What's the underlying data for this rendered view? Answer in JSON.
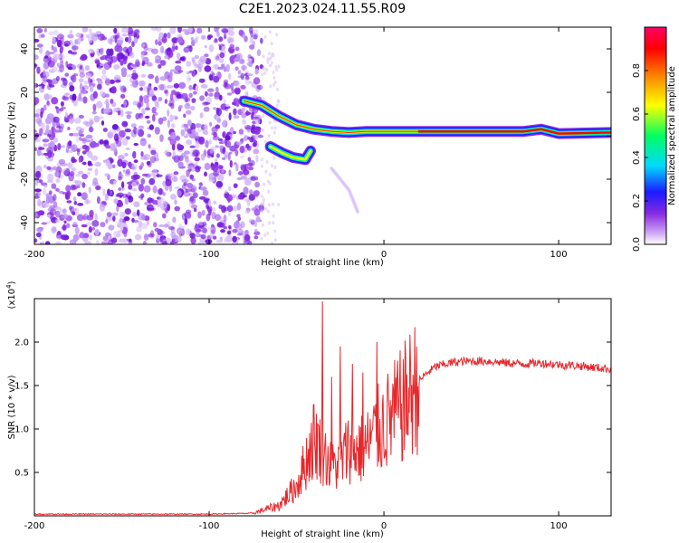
{
  "title": "C2E1.2023.024.11.55.R09",
  "chart_data": [
    {
      "type": "heatmap",
      "title": "C2E1.2023.024.11.55.R09",
      "xlabel": "Height of straight line (km)",
      "ylabel": "Frequency (Hz)",
      "xlim": [
        -200,
        130
      ],
      "ylim": [
        -50,
        50
      ],
      "x_ticks": [
        -200,
        -100,
        0,
        100
      ],
      "x_tick_labels": [
        "-200",
        "-100",
        "0",
        "100"
      ],
      "y_ticks": [
        -40,
        -20,
        0,
        20,
        40
      ],
      "y_tick_labels": [
        "-40",
        "-20",
        "0",
        "20",
        "40"
      ],
      "colorbar": {
        "label": "Normalized spectral amplitude",
        "range": [
          0,
          1
        ],
        "ticks": [
          0.0,
          0.2,
          0.4,
          0.6,
          0.8
        ],
        "tick_labels": [
          "0.0",
          "0.2",
          "0.4",
          "0.6",
          "0.8"
        ],
        "colormap": [
          "#ffffff",
          "#8a2be2",
          "#1a1aff",
          "#00d8ff",
          "#00ff60",
          "#ffff00",
          "#ff8000",
          "#ff0000",
          "#ff0066"
        ]
      },
      "features": {
        "noise_region_x": [
          -200,
          -70
        ],
        "ridge": [
          [
            -80,
            16
          ],
          [
            -70,
            14
          ],
          [
            -60,
            9
          ],
          [
            -50,
            5
          ],
          [
            -40,
            3
          ],
          [
            -30,
            2
          ],
          [
            -20,
            1.5
          ],
          [
            -10,
            2
          ],
          [
            0,
            2
          ],
          [
            20,
            2
          ],
          [
            40,
            2
          ],
          [
            60,
            2
          ],
          [
            80,
            2
          ],
          [
            90,
            3
          ],
          [
            100,
            1
          ],
          [
            130,
            1.5
          ]
        ],
        "lower_branch": [
          [
            -65,
            -5
          ],
          [
            -58,
            -8
          ],
          [
            -52,
            -10
          ],
          [
            -45,
            -11
          ],
          [
            -42,
            -7
          ]
        ],
        "trail": [
          [
            -30,
            -15
          ],
          [
            -20,
            -25
          ],
          [
            -15,
            -35
          ]
        ]
      }
    },
    {
      "type": "line",
      "xlabel": "Height of straight line (km)",
      "ylabel": "SNR (10 * v/v)",
      "y_multiplier_label": "(x10^4)",
      "xlim": [
        -200,
        130
      ],
      "ylim": [
        0,
        2.5
      ],
      "x_ticks": [
        -200,
        -100,
        0,
        100
      ],
      "x_tick_labels": [
        "-200",
        "-100",
        "0",
        "100"
      ],
      "y_ticks": [
        0.5,
        1.0,
        1.5,
        2.0
      ],
      "y_tick_labels": [
        "0.5",
        "1.0",
        "1.5",
        "2.0"
      ],
      "color": "#e8272b",
      "series": [
        {
          "x": [
            -200,
            -150,
            -100,
            -75,
            -60,
            -50,
            -45,
            -40,
            -35,
            -30,
            -25,
            -20,
            -15,
            -10,
            -5,
            0,
            5,
            10,
            15,
            20,
            25,
            30,
            40,
            50,
            60,
            70,
            80,
            90,
            100,
            110,
            120,
            130
          ],
          "y": [
            0.02,
            0.02,
            0.02,
            0.03,
            0.12,
            0.35,
            0.6,
            0.9,
            0.75,
            0.55,
            0.6,
            0.8,
            0.75,
            0.8,
            0.95,
            1.05,
            1.15,
            1.25,
            1.4,
            1.55,
            1.65,
            1.72,
            1.77,
            1.78,
            1.78,
            1.76,
            1.75,
            1.76,
            1.74,
            1.73,
            1.71,
            1.69
          ]
        }
      ],
      "spikes": [
        [
          -35,
          2.47
        ],
        [
          -30,
          1.6
        ],
        [
          -25,
          1.95
        ],
        [
          -18,
          1.75
        ],
        [
          -12,
          1.65
        ],
        [
          -4,
          2.0
        ],
        [
          2,
          1.5
        ]
      ]
    }
  ]
}
